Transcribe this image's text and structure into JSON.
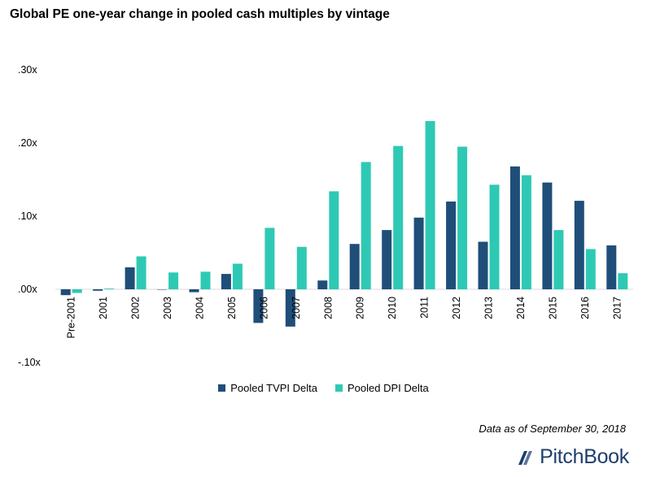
{
  "chart_data": {
    "type": "bar",
    "title": "Global PE one-year change in pooled cash multiples by vintage",
    "categories": [
      "Pre-2001",
      "2001",
      "2002",
      "2003",
      "2004",
      "2005",
      "2006",
      "2007",
      "2008",
      "2009",
      "2010",
      "2011",
      "2012",
      "2013",
      "2014",
      "2015",
      "2016",
      "2017"
    ],
    "series": [
      {
        "name": "Pooled TVPI Delta",
        "color": "#1f4e79",
        "values": [
          -0.008,
          -0.002,
          0.03,
          0.0,
          -0.004,
          0.021,
          -0.046,
          -0.051,
          0.012,
          0.062,
          0.081,
          0.098,
          0.12,
          0.065,
          0.168,
          0.146,
          0.121,
          0.06
        ]
      },
      {
        "name": "Pooled DPI Delta",
        "color": "#2ec9b4",
        "values": [
          -0.005,
          0.001,
          0.045,
          0.023,
          0.024,
          0.035,
          0.084,
          0.058,
          0.134,
          0.174,
          0.196,
          0.23,
          0.195,
          0.143,
          0.156,
          0.081,
          0.055,
          0.022
        ]
      }
    ],
    "ylim": [
      -0.1,
      0.3
    ],
    "yticks": [
      ".30x",
      ".20x",
      ".10x",
      ".00x",
      "-.10x"
    ],
    "ytick_values": [
      0.3,
      0.2,
      0.1,
      0.0,
      -0.1
    ],
    "legend_position": "bottom",
    "grid": false
  },
  "footer": {
    "note": "Data as of September 30, 2018",
    "logo_text": "PitchBook"
  }
}
